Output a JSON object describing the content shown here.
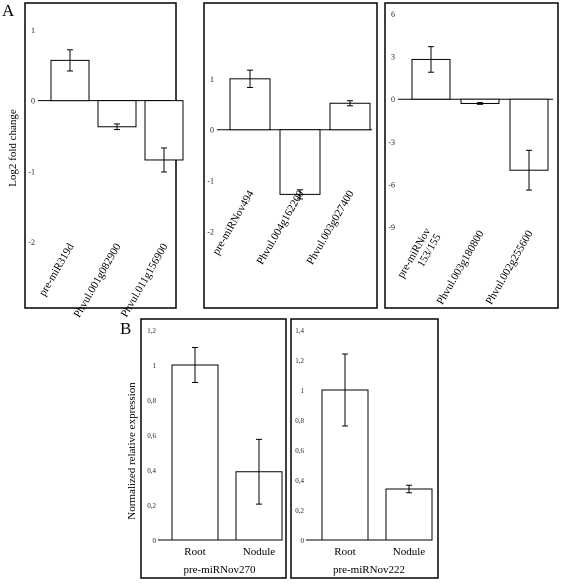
{
  "panel_labels": {
    "a": "A",
    "b": "B"
  },
  "chart_data": [
    {
      "type": "bar",
      "panel": "A",
      "ylabel": "Log2 fold change",
      "ylim": [
        -2,
        1
      ],
      "yticks": [
        1,
        0,
        -1,
        -2
      ],
      "ytick_labels": [
        "1",
        "0",
        "-1",
        "-2"
      ],
      "categories": [
        "pre-miR319d",
        "Phvul.001g082900",
        "Phvul.011g156900"
      ],
      "values": [
        0.57,
        -0.37,
        -0.84
      ],
      "errors": [
        0.15,
        0.04,
        0.17
      ],
      "grid": false
    },
    {
      "type": "bar",
      "panel": "A",
      "ylim": [
        -2,
        2
      ],
      "yticks": [
        1,
        0,
        -1,
        -2
      ],
      "ytick_labels": [
        "1",
        "0",
        "-1",
        "-2"
      ],
      "categories": [
        "pre-miRNov494",
        "Phvul.004g162200",
        "Phvul.003g027400"
      ],
      "values": [
        1.0,
        -1.27,
        0.52
      ],
      "errors": [
        0.17,
        0.09,
        0.05
      ],
      "grid": false
    },
    {
      "type": "bar",
      "panel": "A",
      "ylim": [
        -10,
        6
      ],
      "yticks": [
        6,
        3,
        0,
        -3,
        -6,
        -9
      ],
      "ytick_labels": [
        "6",
        "3",
        "0",
        "-3",
        "-6",
        "-9"
      ],
      "categories": [
        "pre-miRNov 153/155",
        "Phvul.003g180800",
        "Phvul.002g255600"
      ],
      "category_lines": [
        [
          "pre-miRNov",
          "153/155"
        ],
        [
          "Phvul.003g180800"
        ],
        [
          "Phvul.002g255600"
        ]
      ],
      "values": [
        2.8,
        -0.3,
        -5.0
      ],
      "errors": [
        0.9,
        0.06,
        1.4
      ],
      "grid": false
    },
    {
      "type": "bar",
      "panel": "B",
      "ylabel": "Normalized relative expression",
      "xlabel": "pre-miRNov270",
      "ylim": [
        0,
        1.2
      ],
      "yticks": [
        0,
        0.2,
        0.4,
        0.6,
        0.8,
        1,
        1.2
      ],
      "ytick_labels": [
        "0",
        "0,2",
        "0,4",
        "0,6",
        "0,8",
        "1",
        "1,2"
      ],
      "categories": [
        "Root",
        "Nodule"
      ],
      "values": [
        1.0,
        0.39
      ],
      "errors": [
        0.1,
        0.185
      ],
      "grid": false
    },
    {
      "type": "bar",
      "panel": "B",
      "xlabel": "pre-miRNov222",
      "ylim": [
        0,
        1.4
      ],
      "yticks": [
        0,
        0.2,
        0.4,
        0.6,
        0.8,
        1,
        1.2,
        1.4
      ],
      "ytick_labels": [
        "0",
        "0,2",
        "0,4",
        "0,6",
        "0,8",
        "1",
        "1,2",
        "1,4"
      ],
      "categories": [
        "Root",
        "Nodule"
      ],
      "values": [
        1.0,
        0.34
      ],
      "errors": [
        0.24,
        0.025
      ],
      "grid": false
    }
  ]
}
